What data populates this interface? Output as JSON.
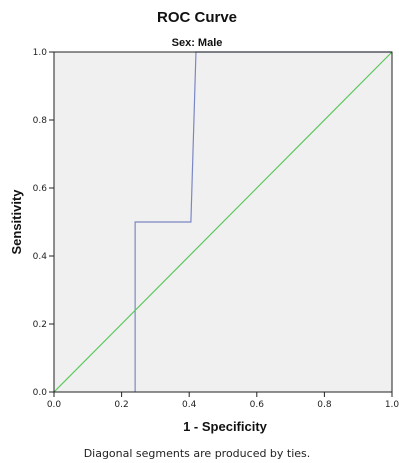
{
  "chart_data": {
    "type": "line",
    "title": "ROC Curve",
    "subtitle": "Sex: Male",
    "xlabel": "1 - Specificity",
    "ylabel": "Sensitivity",
    "xlim": [
      0,
      1
    ],
    "ylim": [
      0,
      1
    ],
    "x_ticks": [
      "0.0",
      "0.2",
      "0.4",
      "0.6",
      "0.8",
      "1.0"
    ],
    "y_ticks": [
      "0.0",
      "0.2",
      "0.4",
      "0.6",
      "0.8",
      "1.0"
    ],
    "grid": false,
    "series": [
      {
        "color": "#7b87c4",
        "points": [
          [
            0.24,
            0.0
          ],
          [
            0.24,
            0.5
          ],
          [
            0.405,
            0.5
          ],
          [
            0.42,
            1.0
          ],
          [
            1.0,
            1.0
          ]
        ]
      },
      {
        "color": "#5ac85a",
        "points": [
          [
            0.0,
            0.0
          ],
          [
            1.0,
            1.0
          ]
        ]
      }
    ],
    "footnote": "Diagonal segments are produced by ties.",
    "plot_background": "#f0f0f0"
  }
}
